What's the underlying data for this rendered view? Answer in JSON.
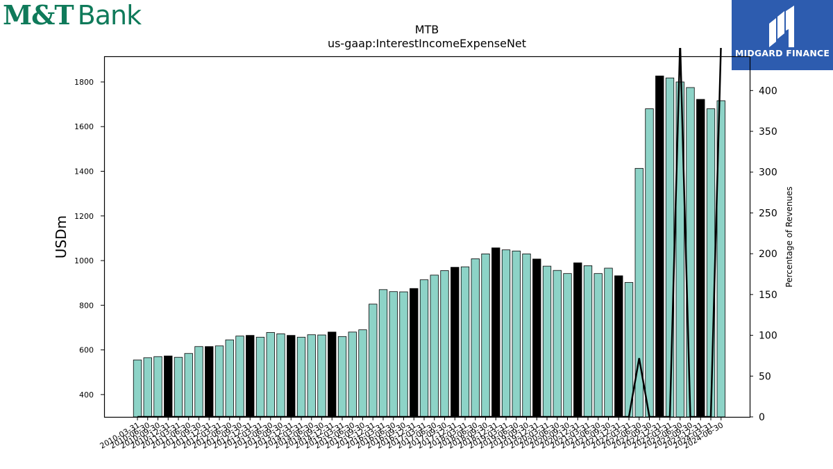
{
  "brand": {
    "bank_logo_mt": "M&T",
    "bank_logo_bank": "Bank",
    "watermark_text": "MIDGARD FINANCE"
  },
  "colors": {
    "bar": "#8dd3c7",
    "highlight_bar": "#000000",
    "line": "#000000",
    "brand_green": "#0f7a5a",
    "watermark_bg": "#2d5caf"
  },
  "chart_data": {
    "type": "bar",
    "title": "MTB",
    "subtitle": "us-gaap:InterestIncomeExpenseNet",
    "ylabel": "USDm",
    "y2label": "Percentage of Revenues",
    "ylim": [
      300,
      1915
    ],
    "y2lim": [
      0,
      442
    ],
    "yticks": [
      400,
      600,
      800,
      1000,
      1200,
      1400,
      1600,
      1800
    ],
    "y2ticks": [
      0,
      50,
      100,
      150,
      200,
      250,
      300,
      350,
      400
    ],
    "categories": [
      "2010-03-31",
      "2010-06-30",
      "2010-09-30",
      "2010-12-31",
      "2011-03-31",
      "2011-06-30",
      "2011-09-30",
      "2011-12-31",
      "2012-03-31",
      "2012-06-30",
      "2012-09-30",
      "2012-12-31",
      "2013-03-31",
      "2013-06-30",
      "2013-09-30",
      "2013-12-31",
      "2014-03-31",
      "2014-06-30",
      "2014-09-30",
      "2014-12-31",
      "2015-03-31",
      "2015-06-30",
      "2015-09-30",
      "2015-12-31",
      "2016-03-31",
      "2016-06-30",
      "2016-09-30",
      "2016-12-31",
      "2017-03-31",
      "2017-06-30",
      "2017-09-30",
      "2017-12-31",
      "2018-03-31",
      "2018-06-30",
      "2018-09-30",
      "2018-12-31",
      "2019-03-31",
      "2019-06-30",
      "2019-09-30",
      "2019-12-31",
      "2020-03-31",
      "2020-06-30",
      "2020-09-30",
      "2020-12-31",
      "2021-03-31",
      "2021-06-30",
      "2021-09-30",
      "2021-12-31",
      "2022-03-31",
      "2022-06-30",
      "2022-09-30",
      "2022-12-31",
      "2023-03-31",
      "2023-06-30",
      "2023-09-30",
      "2023-12-31",
      "2024-03-31",
      "2024-06-30"
    ],
    "xtick_labels": [
      "2010-03-31",
      "2010-06-30",
      "2010-09-30",
      "2010-12-31",
      "2011-03-31",
      "2011-06-30",
      "2011-09-30",
      "2011-12-31",
      "2012-03-31",
      "2012-06-30",
      "2012-09-30",
      "2012-12-31",
      "2013-03-31",
      "2013-06-30",
      "2013-09-30",
      "2013-12-31",
      "2014-03-31",
      "2014-06-30",
      "2014-09-30",
      "2014-12-31",
      "2015-03-31",
      "2015-06-30",
      "2015-09-30",
      "2015-12-31",
      "2016-03-31",
      "2016-06-30",
      "2016-09-30",
      "2016-12-31",
      "2017-03-31",
      "2017-06-30",
      "2017-09-30",
      "2017-12-31",
      "2018-03-31",
      "2018-06-30",
      "2018-09-30",
      "2018-12-31",
      "2019-03-31",
      "2019-06-30",
      "2019-09-30",
      "2019-12-31",
      "2020-03-31",
      "2020-06-30",
      "2020-09-30",
      "2020-12-31",
      "2021-03-31",
      "2021-06-30",
      "2021-09-30",
      "2021-12-31",
      "2022-03-31",
      "2022-06-30",
      "2022-09-30",
      "2022-12-31",
      "2023-03-31",
      "2023-06-30",
      "2023-09-30",
      "2023-12-31",
      "2024-03-31",
      "2024-06-30"
    ],
    "values": [
      555,
      565,
      570,
      573,
      567,
      584,
      615,
      615,
      618,
      645,
      662,
      665,
      657,
      678,
      672,
      665,
      657,
      668,
      667,
      680,
      660,
      680,
      690,
      805,
      870,
      861,
      860,
      875,
      914,
      935,
      955,
      970,
      972,
      1008,
      1030,
      1057,
      1048,
      1043,
      1030,
      1007,
      975,
      956,
      942,
      990,
      977,
      942,
      966,
      932,
      902,
      1413,
      1680,
      1827,
      1818,
      1800,
      1775,
      1722,
      1680,
      1716
    ],
    "highlight": [
      false,
      false,
      false,
      true,
      false,
      false,
      false,
      true,
      false,
      false,
      false,
      true,
      false,
      false,
      false,
      true,
      false,
      false,
      false,
      true,
      false,
      false,
      false,
      false,
      false,
      false,
      false,
      true,
      false,
      false,
      false,
      true,
      false,
      false,
      false,
      true,
      false,
      false,
      false,
      true,
      false,
      false,
      false,
      true,
      false,
      false,
      false,
      true,
      false,
      false,
      false,
      true,
      false,
      false,
      false,
      true,
      false,
      false
    ],
    "line_values": [
      0,
      0,
      0,
      0,
      0,
      0,
      0,
      0,
      0,
      0,
      0,
      0,
      0,
      0,
      0,
      0,
      0,
      0,
      0,
      0,
      0,
      0,
      0,
      0,
      0,
      0,
      0,
      0,
      0,
      0,
      0,
      0,
      0,
      0,
      0,
      0,
      0,
      0,
      0,
      0,
      0,
      0,
      0,
      0,
      0,
      0,
      0,
      0,
      0,
      72,
      0,
      0,
      0,
      460,
      0,
      0,
      0,
      460
    ]
  }
}
